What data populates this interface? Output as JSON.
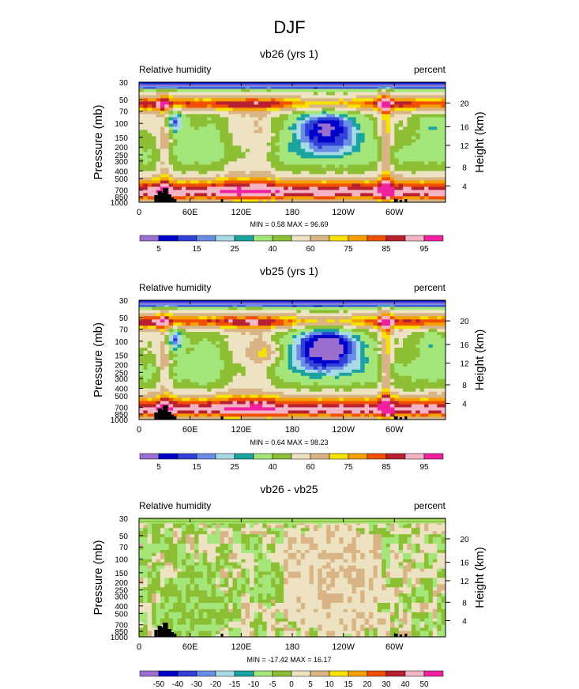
{
  "main_title": "DJF",
  "colors": {
    "abs": [
      "#9b6fd0",
      "#0000c8",
      "#3040d8",
      "#6a8ce6",
      "#a6dbe6",
      "#1aa3a0",
      "#a4e67a",
      "#8cbf34",
      "#ede3c2",
      "#d9b585",
      "#f7e100",
      "#f6a000",
      "#f05000",
      "#b82030",
      "#f4b4c6",
      "#f0209e"
    ],
    "diff": [
      "#9b6fd0",
      "#0000c8",
      "#3040d8",
      "#6a8ce6",
      "#a6dbe6",
      "#1aa3a0",
      "#a4e67a",
      "#8cbf34",
      "#ede3c2",
      "#d9b585",
      "#f7e100",
      "#f6a000",
      "#f05000",
      "#b82030",
      "#f4b4c6",
      "#f0209e"
    ],
    "topo": "#000000"
  },
  "chart_data": [
    {
      "type": "heatmap",
      "title": "vb26 (yrs 1)",
      "left_label": "Relative humidity",
      "right_label": "percent",
      "ylabel": "Pressure (mb)",
      "ylabel_right": "Height (km)",
      "x_ticks": [
        "0",
        "60E",
        "120E",
        "180",
        "120W",
        "60W"
      ],
      "x_tick_values": [
        0,
        60,
        120,
        180,
        240,
        300
      ],
      "xlim": [
        0,
        360
      ],
      "y_ticks": [
        "1000",
        "850",
        "700",
        "500",
        "400",
        "300",
        "250",
        "200",
        "150",
        "100",
        "70",
        "50",
        "30"
      ],
      "y_tick_values": [
        1000,
        850,
        700,
        500,
        400,
        300,
        250,
        200,
        150,
        100,
        70,
        50,
        30
      ],
      "ylim": [
        1000,
        30
      ],
      "height_ticks": [
        "4",
        "8",
        "12",
        "16",
        "20"
      ],
      "stats_text": "MIN =   0.58  MAX =  96.69",
      "colorbar_labels": [
        "5",
        "15",
        "25",
        "40",
        "60",
        "75",
        "85",
        "95"
      ],
      "mode": "abs",
      "variant": 0
    },
    {
      "type": "heatmap",
      "title": "vb25 (yrs 1)",
      "left_label": "Relative humidity",
      "right_label": "percent",
      "ylabel": "Pressure (mb)",
      "ylabel_right": "Height (km)",
      "x_ticks": [
        "0",
        "60E",
        "120E",
        "180",
        "120W",
        "60W"
      ],
      "x_tick_values": [
        0,
        60,
        120,
        180,
        240,
        300
      ],
      "xlim": [
        0,
        360
      ],
      "y_ticks": [
        "1000",
        "850",
        "700",
        "500",
        "400",
        "300",
        "250",
        "200",
        "150",
        "100",
        "70",
        "50",
        "30"
      ],
      "y_tick_values": [
        1000,
        850,
        700,
        500,
        400,
        300,
        250,
        200,
        150,
        100,
        70,
        50,
        30
      ],
      "ylim": [
        1000,
        30
      ],
      "height_ticks": [
        "4",
        "8",
        "12",
        "16",
        "20"
      ],
      "stats_text": "MIN =   0.64  MAX =  98.23",
      "colorbar_labels": [
        "5",
        "15",
        "25",
        "40",
        "60",
        "75",
        "85",
        "95"
      ],
      "mode": "abs",
      "variant": 1
    },
    {
      "type": "heatmap",
      "title": "vb26 - vb25",
      "left_label": "Relative humidity",
      "right_label": "percent",
      "ylabel": "Pressure (mb)",
      "ylabel_right": "Height (km)",
      "x_ticks": [
        "0",
        "60E",
        "120E",
        "180",
        "120W",
        "60W"
      ],
      "x_tick_values": [
        0,
        60,
        120,
        180,
        240,
        300
      ],
      "xlim": [
        0,
        360
      ],
      "y_ticks": [
        "1000",
        "850",
        "700",
        "500",
        "400",
        "300",
        "250",
        "200",
        "150",
        "100",
        "70",
        "50",
        "30"
      ],
      "y_tick_values": [
        1000,
        850,
        700,
        500,
        400,
        300,
        250,
        200,
        150,
        100,
        70,
        50,
        30
      ],
      "ylim": [
        1000,
        30
      ],
      "height_ticks": [
        "4",
        "8",
        "12",
        "16",
        "20"
      ],
      "stats_text": "MIN = -17.42  MAX =  16.17",
      "colorbar_labels": [
        "-50",
        "-40",
        "-30",
        "-20",
        "-15",
        "-10",
        "-5",
        "0",
        "5",
        "10",
        "15",
        "20",
        "30",
        "40",
        "50"
      ],
      "mode": "diff",
      "variant": 2
    }
  ]
}
